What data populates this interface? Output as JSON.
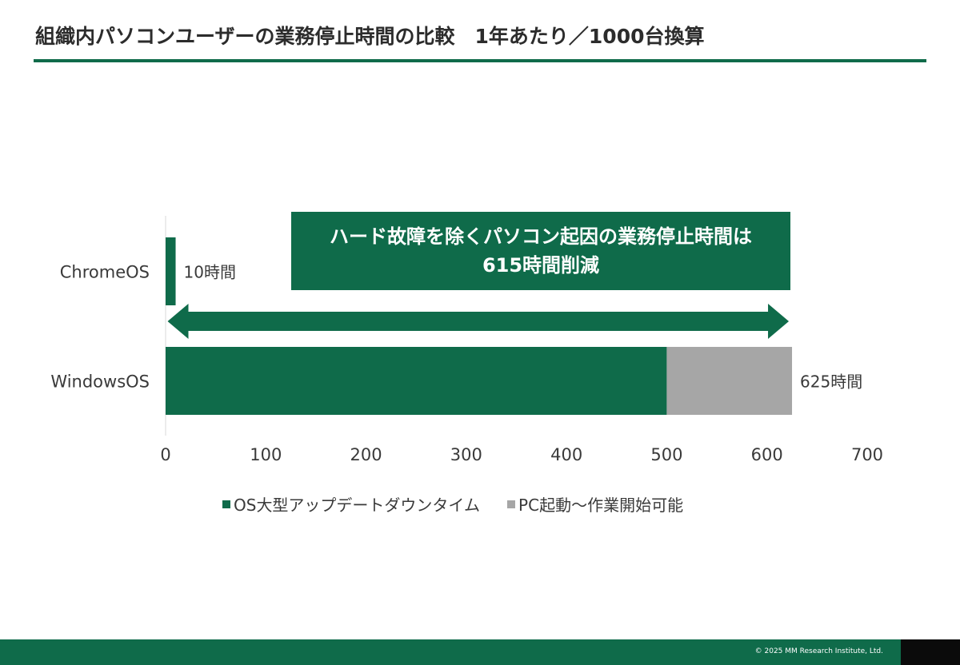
{
  "page": {
    "title": "組織内パソコンユーザーの業務停止時間の比較　1年あたり／1000台換算",
    "callout_line1": "ハード故障を除くパソコン起因の業務停止時間は",
    "callout_line2": "615時間削減",
    "copyright": "© 2025 MM Research Institute, Ltd."
  },
  "colors": {
    "accent": "#0f6b4a",
    "gray": "#a6a6a6"
  },
  "chart_data": {
    "type": "bar",
    "orientation": "horizontal",
    "stacked": true,
    "categories": [
      "ChromeOS",
      "WindowsOS"
    ],
    "series": [
      {
        "name": "OS大型アップデートダウンタイム",
        "values": [
          10,
          500
        ],
        "color": "#0f6b4a"
      },
      {
        "name": "PC起動～作業開始可能",
        "values": [
          0,
          125
        ],
        "color": "#a6a6a6"
      }
    ],
    "data_labels": [
      "10時間",
      "625時間"
    ],
    "x_ticks": [
      0,
      100,
      200,
      300,
      400,
      500,
      600,
      700
    ],
    "xlim": [
      0,
      700
    ],
    "grid": false,
    "legend_position": "bottom",
    "annotation": "ハード故障を除くパソコン起因の業務停止時間は 615時間削減"
  }
}
